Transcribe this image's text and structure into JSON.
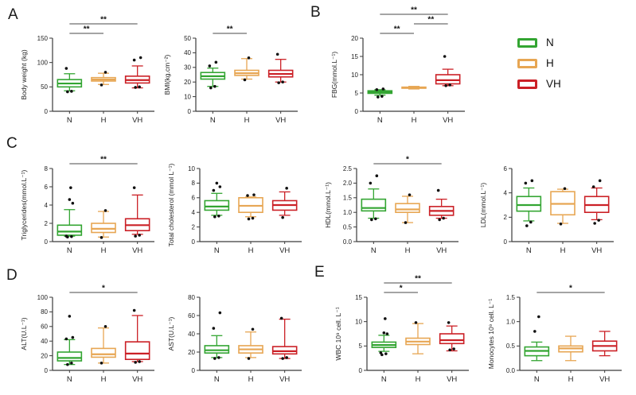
{
  "panel_labels": [
    "A",
    "B",
    "C",
    "D",
    "E"
  ],
  "colors": {
    "N": "#33A532",
    "H": "#E7A653",
    "VH": "#CB2026",
    "axis": "#3a3a3a",
    "significance_line": "#4a4a4a",
    "outlier": "#111111"
  },
  "legend": {
    "items": [
      {
        "label": "N",
        "color": "#33A532"
      },
      {
        "label": "H",
        "color": "#E7A653"
      },
      {
        "label": "VH",
        "color": "#CB2026"
      }
    ]
  },
  "chart_data": [
    {
      "id": "body-weight",
      "panel": "A",
      "type": "box",
      "ylabel": "Body weight (kg)",
      "ylim": [
        0,
        150
      ],
      "yticks": [
        "0",
        "50",
        "100",
        "150"
      ],
      "categories": [
        "N",
        "H",
        "VH"
      ],
      "boxes": [
        {
          "group": "N",
          "whisker_low": 42,
          "q1": 50,
          "median": 57,
          "q3": 65,
          "whisker_high": 77,
          "outliers": [
            40,
            41,
            88
          ]
        },
        {
          "group": "H",
          "whisker_low": 55,
          "q1": 62,
          "median": 65,
          "q3": 69,
          "whisker_high": 78,
          "outliers": [
            54,
            80
          ]
        },
        {
          "group": "VH",
          "whisker_low": 48,
          "q1": 58,
          "median": 64,
          "q3": 72,
          "whisker_high": 93,
          "outliers": [
            49,
            50,
            105,
            110
          ]
        }
      ],
      "significance": [
        {
          "from": "N",
          "to": "VH",
          "label": "**"
        },
        {
          "from": "N",
          "to": "H",
          "label": "**"
        }
      ]
    },
    {
      "id": "bmi",
      "panel": "A",
      "type": "box",
      "ylabel": "BMI(kg.cm⁻²)",
      "ylim": [
        0,
        50
      ],
      "yticks": [
        "0",
        "10",
        "20",
        "30",
        "40",
        "50"
      ],
      "categories": [
        "N",
        "H",
        "VH"
      ],
      "boxes": [
        {
          "group": "N",
          "whisker_low": 17,
          "q1": 22,
          "median": 24,
          "q3": 26.5,
          "whisker_high": 29.5,
          "outliers": [
            16,
            17,
            31,
            33.5
          ]
        },
        {
          "group": "H",
          "whisker_low": 22,
          "q1": 24.5,
          "median": 26,
          "q3": 28,
          "whisker_high": 36,
          "outliers": [
            21.5,
            36.5
          ]
        },
        {
          "group": "VH",
          "whisker_low": 20,
          "q1": 23.5,
          "median": 25.5,
          "q3": 28,
          "whisker_high": 35.5,
          "outliers": [
            19.5,
            20,
            39
          ]
        }
      ],
      "significance": [
        {
          "from": "N",
          "to": "H",
          "label": "**"
        }
      ]
    },
    {
      "id": "fbg",
      "panel": "B",
      "type": "box",
      "ylabel": "FBG(mmol.L⁻¹)",
      "ylim": [
        0,
        20
      ],
      "yticks": [
        "0",
        "5",
        "10",
        "15",
        "20"
      ],
      "categories": [
        "N",
        "H",
        "VH"
      ],
      "boxes": [
        {
          "group": "N",
          "whisker_low": 4.4,
          "q1": 4.9,
          "median": 5.2,
          "q3": 5.6,
          "whisker_high": 5.9,
          "outliers": [
            3.9,
            4.1,
            5.9,
            6.1
          ]
        },
        {
          "group": "H",
          "whisker_low": 6.1,
          "q1": 6.3,
          "median": 6.45,
          "q3": 6.6,
          "whisker_high": 6.8,
          "outliers": []
        },
        {
          "group": "VH",
          "whisker_low": 7.0,
          "q1": 7.5,
          "median": 8.5,
          "q3": 10.0,
          "whisker_high": 11.5,
          "outliers": [
            7.0,
            7.2,
            15.0
          ]
        }
      ],
      "significance": [
        {
          "from": "N",
          "to": "VH",
          "label": "**"
        },
        {
          "from": "H",
          "to": "VH",
          "label": "**"
        },
        {
          "from": "N",
          "to": "H",
          "label": "**"
        }
      ]
    },
    {
      "id": "triglycerides",
      "panel": "C",
      "type": "box",
      "ylabel": "Triglycerides(mmol.L⁻¹)",
      "ylim": [
        0,
        8
      ],
      "yticks": [
        "0",
        "2",
        "4",
        "6",
        "8"
      ],
      "categories": [
        "N",
        "H",
        "VH"
      ],
      "boxes": [
        {
          "group": "N",
          "whisker_low": 0.6,
          "q1": 0.7,
          "median": 1.1,
          "q3": 1.8,
          "whisker_high": 3.5,
          "outliers": [
            0.5,
            0.55,
            0.6,
            4.2,
            4.6,
            5.9
          ]
        },
        {
          "group": "H",
          "whisker_low": 0.5,
          "q1": 1.0,
          "median": 1.4,
          "q3": 2.0,
          "whisker_high": 3.3,
          "outliers": [
            0.45,
            3.4
          ]
        },
        {
          "group": "VH",
          "whisker_low": 0.8,
          "q1": 1.2,
          "median": 1.8,
          "q3": 2.5,
          "whisker_high": 5.1,
          "outliers": [
            0.6,
            0.7,
            5.9
          ]
        }
      ],
      "significance": [
        {
          "from": "N",
          "to": "VH",
          "label": "**"
        }
      ]
    },
    {
      "id": "total-cholesterol",
      "panel": "C",
      "type": "box",
      "ylabel": "Total cholesterol (mmol L⁻¹)",
      "ylim": [
        0,
        10
      ],
      "yticks": [
        "0",
        "2",
        "4",
        "6",
        "8",
        "10"
      ],
      "categories": [
        "N",
        "H",
        "VH"
      ],
      "boxes": [
        {
          "group": "N",
          "whisker_low": 3.6,
          "q1": 4.3,
          "median": 4.8,
          "q3": 5.6,
          "whisker_high": 6.6,
          "outliers": [
            3.4,
            3.5,
            7.0,
            7.5,
            8.0
          ]
        },
        {
          "group": "H",
          "whisker_low": 3.4,
          "q1": 4.0,
          "median": 4.9,
          "q3": 6.0,
          "whisker_high": 6.1,
          "outliers": [
            3.1,
            3.2,
            6.3,
            6.4
          ]
        },
        {
          "group": "VH",
          "whisker_low": 3.6,
          "q1": 4.3,
          "median": 5.0,
          "q3": 5.6,
          "whisker_high": 6.8,
          "outliers": [
            3.3,
            7.3
          ]
        }
      ],
      "significance": []
    },
    {
      "id": "hdl",
      "panel": "C",
      "type": "box",
      "ylabel": "HDL(mmol.L⁻¹)",
      "ylim": [
        0,
        2.5
      ],
      "yticks": [
        "0.0",
        "0.5",
        "1.0",
        "1.5",
        "2.0",
        "2.5"
      ],
      "categories": [
        "N",
        "H",
        "VH"
      ],
      "boxes": [
        {
          "group": "N",
          "whisker_low": 0.8,
          "q1": 1.05,
          "median": 1.15,
          "q3": 1.45,
          "whisker_high": 1.8,
          "outliers": [
            0.75,
            0.78,
            2.0,
            2.25
          ]
        },
        {
          "group": "H",
          "whisker_low": 0.65,
          "q1": 1.0,
          "median": 1.1,
          "q3": 1.3,
          "whisker_high": 1.55,
          "outliers": [
            0.65,
            1.6
          ]
        },
        {
          "group": "VH",
          "whisker_low": 0.8,
          "q1": 0.9,
          "median": 1.05,
          "q3": 1.2,
          "whisker_high": 1.45,
          "outliers": [
            0.75,
            0.8,
            1.75
          ]
        }
      ],
      "significance": [
        {
          "from": "N",
          "to": "VH",
          "label": "*"
        }
      ]
    },
    {
      "id": "ldl",
      "panel": "C",
      "type": "box",
      "ylabel": "LDL(mmol.L⁻¹)",
      "ylim": [
        0,
        6
      ],
      "yticks": [
        "0",
        "2",
        "4",
        "6"
      ],
      "categories": [
        "N",
        "H",
        "VH"
      ],
      "boxes": [
        {
          "group": "N",
          "whisker_low": 1.7,
          "q1": 2.5,
          "median": 3.0,
          "q3": 3.7,
          "whisker_high": 4.4,
          "outliers": [
            1.3,
            1.6,
            4.8,
            5.0
          ]
        },
        {
          "group": "H",
          "whisker_low": 1.5,
          "q1": 2.2,
          "median": 3.1,
          "q3": 4.1,
          "whisker_high": 4.3,
          "outliers": [
            1.45,
            4.35
          ]
        },
        {
          "group": "VH",
          "whisker_low": 1.8,
          "q1": 2.4,
          "median": 3.0,
          "q3": 3.7,
          "whisker_high": 4.4,
          "outliers": [
            1.5,
            1.75,
            4.5,
            5.0
          ]
        }
      ],
      "significance": []
    },
    {
      "id": "alt",
      "panel": "D",
      "type": "box",
      "ylabel": "ALT(U.L⁻¹)",
      "ylim": [
        0,
        100
      ],
      "yticks": [
        "0",
        "20",
        "40",
        "60",
        "80",
        "100"
      ],
      "categories": [
        "N",
        "H",
        "VH"
      ],
      "boxes": [
        {
          "group": "N",
          "whisker_low": 8,
          "q1": 13,
          "median": 17,
          "q3": 25,
          "whisker_high": 42,
          "outliers": [
            8,
            10,
            43,
            45,
            74
          ]
        },
        {
          "group": "H",
          "whisker_low": 10,
          "q1": 18,
          "median": 22,
          "q3": 30,
          "whisker_high": 58,
          "outliers": [
            10,
            60
          ]
        },
        {
          "group": "VH",
          "whisker_low": 12,
          "q1": 15,
          "median": 23,
          "q3": 39,
          "whisker_high": 75,
          "outliers": [
            11,
            12,
            82
          ]
        }
      ],
      "significance": [
        {
          "from": "N",
          "to": "VH",
          "label": "*"
        }
      ]
    },
    {
      "id": "ast",
      "panel": "D",
      "type": "box",
      "ylabel": "AST(U.L⁻¹)",
      "ylim": [
        0,
        80
      ],
      "yticks": [
        "0",
        "20",
        "40",
        "60",
        "80"
      ],
      "categories": [
        "N",
        "H",
        "VH"
      ],
      "boxes": [
        {
          "group": "N",
          "whisker_low": 14,
          "q1": 19,
          "median": 22,
          "q3": 27,
          "whisker_high": 38,
          "outliers": [
            13,
            14,
            46,
            63
          ]
        },
        {
          "group": "H",
          "whisker_low": 14,
          "q1": 19,
          "median": 23,
          "q3": 27,
          "whisker_high": 42,
          "outliers": [
            13,
            45
          ]
        },
        {
          "group": "VH",
          "whisker_low": 13,
          "q1": 18,
          "median": 21,
          "q3": 26,
          "whisker_high": 56,
          "outliers": [
            13,
            14,
            57
          ]
        }
      ],
      "significance": []
    },
    {
      "id": "wbc",
      "panel": "E",
      "type": "box",
      "ylabel": "WBC 10⁹ cell. L⁻¹",
      "ylim": [
        0,
        15
      ],
      "yticks": [
        "0",
        "5",
        "10",
        "15"
      ],
      "categories": [
        "N",
        "H",
        "VH"
      ],
      "boxes": [
        {
          "group": "N",
          "whisker_low": 3.9,
          "q1": 4.7,
          "median": 5.2,
          "q3": 5.8,
          "whisker_high": 7.2,
          "outliers": [
            3.2,
            3.4,
            3.6,
            7.5,
            7.7,
            10.6
          ]
        },
        {
          "group": "H",
          "whisker_low": 3.4,
          "q1": 5.3,
          "median": 5.9,
          "q3": 6.6,
          "whisker_high": 9.6,
          "outliers": [
            9.8
          ]
        },
        {
          "group": "VH",
          "whisker_low": 4.0,
          "q1": 5.5,
          "median": 6.2,
          "q3": 7.5,
          "whisker_high": 9.1,
          "outliers": [
            4.2,
            4.4,
            9.8
          ]
        }
      ],
      "significance": [
        {
          "from": "N",
          "to": "VH",
          "label": "**"
        },
        {
          "from": "N",
          "to": "H",
          "label": "*"
        }
      ]
    },
    {
      "id": "monocytes",
      "panel": "E",
      "type": "box",
      "ylabel": "Monocytes 10⁹ cell. L⁻¹",
      "ylim": [
        0,
        1.5
      ],
      "yticks": [
        "0.0",
        "0.5",
        "1.0",
        "1.5"
      ],
      "categories": [
        "N",
        "H",
        "VH"
      ],
      "boxes": [
        {
          "group": "N",
          "whisker_low": 0.2,
          "q1": 0.3,
          "median": 0.4,
          "q3": 0.48,
          "whisker_high": 0.58,
          "outliers": [
            0.8,
            1.1
          ]
        },
        {
          "group": "H",
          "whisker_low": 0.2,
          "q1": 0.38,
          "median": 0.45,
          "q3": 0.5,
          "whisker_high": 0.7,
          "outliers": []
        },
        {
          "group": "VH",
          "whisker_low": 0.3,
          "q1": 0.4,
          "median": 0.5,
          "q3": 0.6,
          "whisker_high": 0.8,
          "outliers": []
        }
      ],
      "significance": [
        {
          "from": "N",
          "to": "VH",
          "label": "*"
        }
      ]
    }
  ]
}
